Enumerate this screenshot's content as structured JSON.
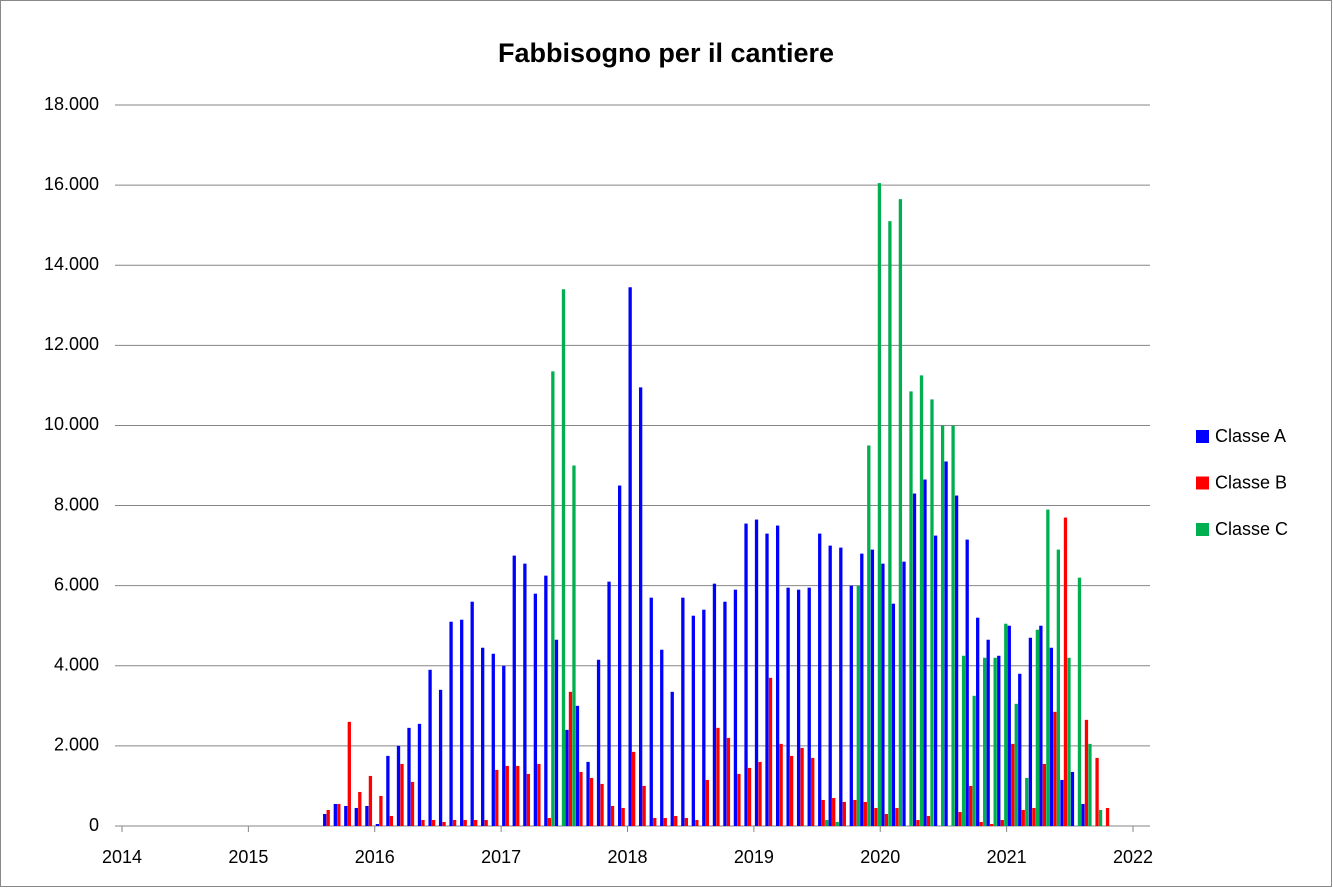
{
  "chart_data": {
    "type": "bar",
    "title": "Fabbisogno per il cantiere",
    "x": [
      2015.583,
      2015.667,
      2015.75,
      2015.833,
      2015.917,
      2016,
      2016.083,
      2016.167,
      2016.25,
      2016.333,
      2016.417,
      2016.5,
      2016.583,
      2016.667,
      2016.75,
      2016.833,
      2016.917,
      2017,
      2017.083,
      2017.167,
      2017.25,
      2017.333,
      2017.417,
      2017.5,
      2017.583,
      2017.667,
      2017.75,
      2017.833,
      2017.917,
      2018,
      2018.083,
      2018.167,
      2018.25,
      2018.333,
      2018.417,
      2018.5,
      2018.583,
      2018.667,
      2018.75,
      2018.833,
      2018.917,
      2019,
      2019.083,
      2019.167,
      2019.25,
      2019.333,
      2019.417,
      2019.5,
      2019.583,
      2019.667,
      2019.75,
      2019.833,
      2019.917,
      2020,
      2020.083,
      2020.167,
      2020.25,
      2020.333,
      2020.417,
      2020.5,
      2020.583,
      2020.667,
      2020.75,
      2020.833,
      2020.917,
      2021,
      2021.083,
      2021.167,
      2021.25,
      2021.333,
      2021.417,
      2021.5,
      2021.583,
      2021.667,
      2021.75
    ],
    "series": [
      {
        "name": "Classe A",
        "color": "#0000ff",
        "values": [
          300,
          550,
          500,
          450,
          500,
          50,
          1750,
          2000,
          2450,
          2550,
          3900,
          3400,
          5100,
          5150,
          5600,
          4450,
          4300,
          4000,
          6750,
          6550,
          5800,
          6250,
          4650,
          2400,
          3000,
          1600,
          4150,
          6100,
          8500,
          13450,
          10950,
          5700,
          4400,
          3350,
          5700,
          5250,
          5400,
          6050,
          5600,
          5900,
          7550,
          7650,
          7300,
          7500,
          5950,
          5900,
          5950,
          7300,
          7000,
          6950,
          6000,
          6800,
          6900,
          6550,
          5550,
          6600,
          8300,
          8650,
          7250,
          9100,
          8250,
          7150,
          5200,
          4650,
          4250,
          5000,
          3800,
          4700,
          5000,
          4450,
          1150,
          1350,
          550,
          0,
          0
        ]
      },
      {
        "name": "Classe B",
        "color": "#ff0000",
        "values": [
          400,
          550,
          2600,
          850,
          1250,
          750,
          250,
          1550,
          1100,
          150,
          150,
          100,
          150,
          150,
          150,
          150,
          1400,
          1500,
          1500,
          1300,
          1550,
          200,
          0,
          3350,
          1350,
          1200,
          1050,
          500,
          450,
          1850,
          1000,
          200,
          200,
          250,
          200,
          150,
          1150,
          2450,
          2200,
          1300,
          1450,
          1600,
          3700,
          2050,
          1750,
          1950,
          1700,
          650,
          700,
          600,
          650,
          600,
          450,
          300,
          450,
          0,
          150,
          250,
          0,
          0,
          350,
          1000,
          100,
          50,
          150,
          2050,
          400,
          450,
          1550,
          2850,
          7700,
          0,
          2650,
          1700,
          450
        ]
      },
      {
        "name": "Classe C",
        "color": "#00b050",
        "values": [
          0,
          0,
          0,
          0,
          0,
          0,
          0,
          0,
          0,
          0,
          0,
          0,
          0,
          0,
          0,
          0,
          0,
          0,
          0,
          0,
          0,
          11350,
          13400,
          9000,
          0,
          0,
          0,
          0,
          0,
          0,
          0,
          0,
          0,
          0,
          0,
          0,
          0,
          0,
          0,
          0,
          0,
          0,
          0,
          0,
          0,
          0,
          0,
          150,
          100,
          0,
          6000,
          9500,
          16050,
          15100,
          15650,
          10850,
          11250,
          10650,
          10000,
          10000,
          4250,
          3250,
          4200,
          4200,
          5050,
          3050,
          1200,
          4900,
          7900,
          6900,
          4200,
          6200,
          2050,
          400,
          0
        ]
      }
    ],
    "xlim": [
      2014,
      2022
    ],
    "xticks": [
      2014,
      2015,
      2016,
      2017,
      2018,
      2019,
      2020,
      2021,
      2022
    ],
    "ylim": [
      0,
      18000
    ],
    "yticks": [
      0,
      {
        "value": 2000,
        "label": "2.000"
      },
      {
        "value": 4000,
        "label": "4.000"
      },
      {
        "value": 6000,
        "label": "6.000"
      },
      {
        "value": 8000,
        "label": "8.000"
      },
      {
        "value": 10000,
        "label": "10.000"
      },
      {
        "value": 12000,
        "label": "12.000"
      },
      {
        "value": 14000,
        "label": "14.000"
      },
      {
        "value": 16000,
        "label": "16.000"
      },
      {
        "value": 18000,
        "label": "18.000"
      }
    ],
    "grid": true,
    "legend": "right"
  }
}
